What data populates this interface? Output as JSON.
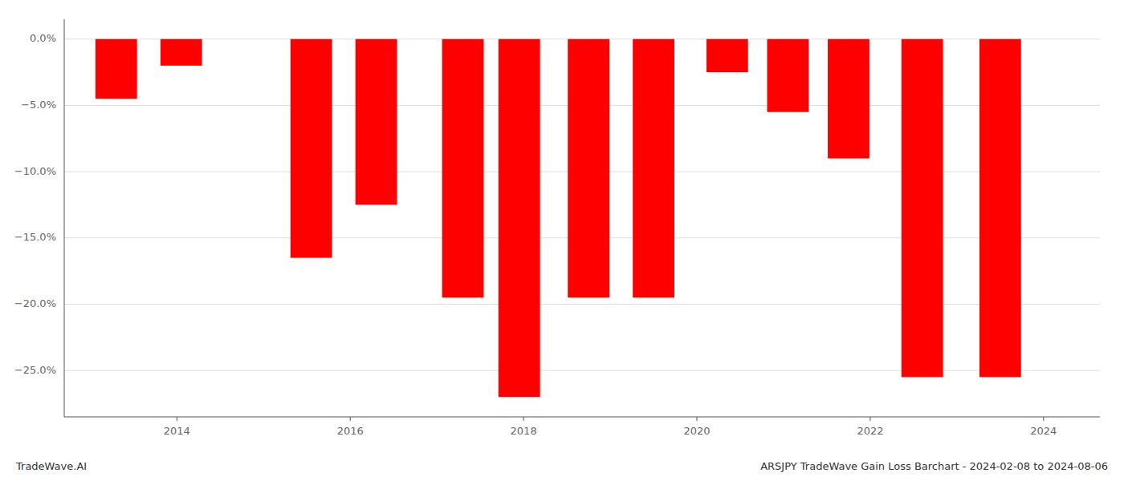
{
  "chart_data": {
    "type": "bar",
    "x": [
      2013.3,
      2014.05,
      2015.55,
      2016.3,
      2017.3,
      2017.95,
      2018.75,
      2019.5,
      2020.35,
      2021.05,
      2021.75,
      2022.6,
      2023.5
    ],
    "values": [
      -4.5,
      -2.0,
      -16.5,
      -12.5,
      -19.5,
      -27.0,
      -19.5,
      -19.5,
      -2.5,
      -5.5,
      -9.0,
      -25.5,
      -25.5
    ],
    "color": "#ff0000",
    "xlim": [
      2012.7,
      2024.65
    ],
    "xticks": [
      2014,
      2016,
      2018,
      2020,
      2022,
      2024
    ],
    "ylim": [
      -28.5,
      1.5
    ],
    "yticks": [
      {
        "value": 0.0,
        "label": "0.0%"
      },
      {
        "value": -5.0,
        "label": "−5.0%"
      },
      {
        "value": -10.0,
        "label": "−10.0%"
      },
      {
        "value": -15.0,
        "label": "−15.0%"
      },
      {
        "value": -20.0,
        "label": "−20.0%"
      },
      {
        "value": -25.0,
        "label": "−25.0%"
      }
    ],
    "grid": true,
    "annotations": [
      "TradeWave.AI",
      "ARSJPY TradeWave Gain Loss Barchart - 2024-02-08 to 2024-08-06"
    ]
  }
}
